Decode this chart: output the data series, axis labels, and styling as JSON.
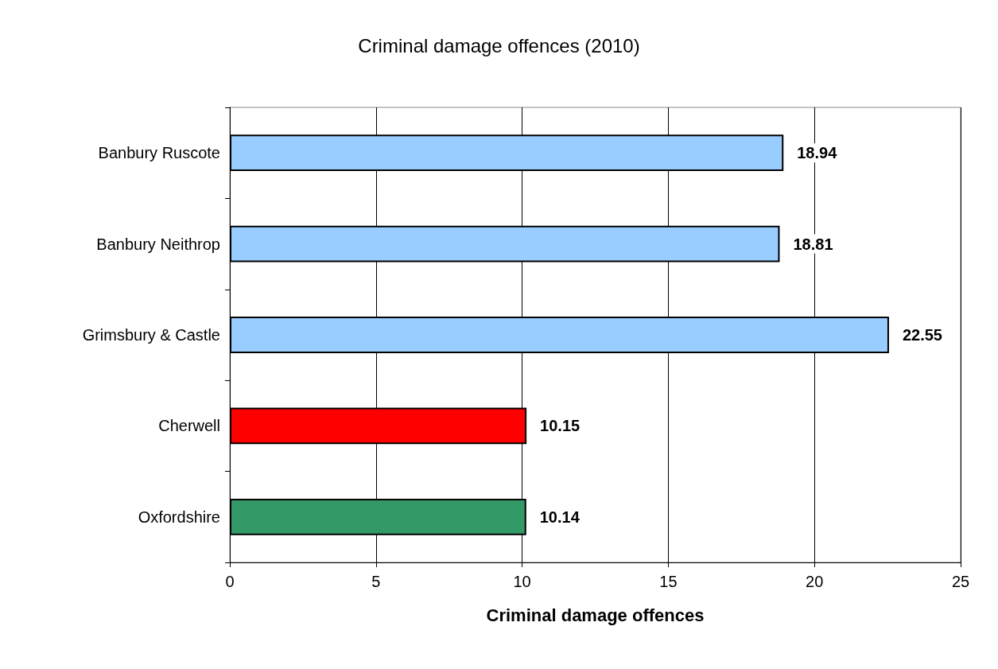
{
  "chart_data": {
    "type": "bar",
    "orientation": "horizontal",
    "title": "Criminal damage offences (2010)",
    "xlabel": "Criminal damage offences",
    "categories": [
      "Banbury Ruscote",
      "Banbury Neithrop",
      "Grimsbury & Castle",
      "Cherwell",
      "Oxfordshire"
    ],
    "values": [
      18.94,
      18.81,
      22.55,
      10.15,
      10.14
    ],
    "colors": [
      "#99ccff",
      "#99ccff",
      "#99ccff",
      "#ff0000",
      "#339966"
    ],
    "xlim": [
      0,
      25
    ],
    "xticks": [
      0,
      5,
      10,
      15,
      20,
      25
    ],
    "grid": "x",
    "data_labels": true
  }
}
